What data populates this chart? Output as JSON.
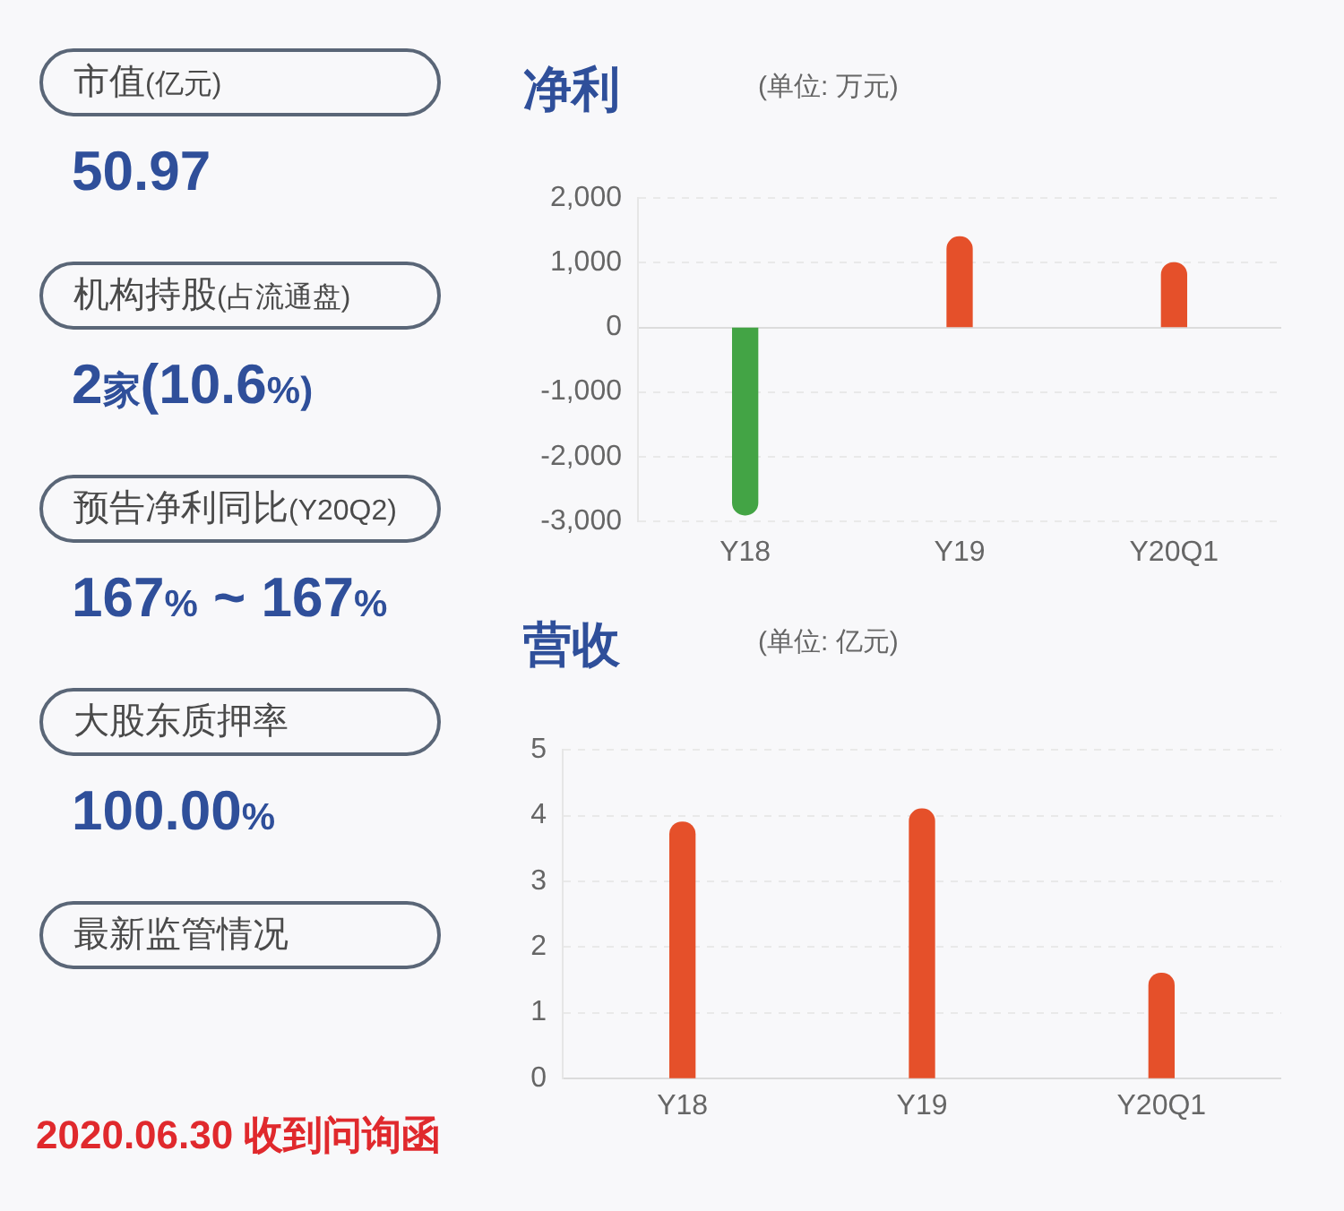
{
  "chart_data": [
    {
      "type": "other",
      "annotations": [
        "市值(亿元)",
        "50.97",
        "机构持股(占流通盘)",
        "2家(10.6%)",
        "预告净利同比(Y20Q2)",
        "167% ~ 167%",
        "大股东质押率",
        "100.00%",
        "最新监管情况",
        "2020.06.30 收到问询函"
      ]
    },
    {
      "type": "bar",
      "title": "净利",
      "subtitle": "(单位: 万元)",
      "categories": [
        "Y18",
        "Y19",
        "Y20Q1"
      ],
      "values": [
        -2900,
        1400,
        1000
      ],
      "colors": [
        "#43a445",
        "#e5502a",
        "#e5502a"
      ],
      "ylim": [
        -3000,
        2000
      ],
      "yticks": [
        {
          "value": -3000,
          "label": "-3,000"
        },
        {
          "value": -2000,
          "label": "-2,000"
        },
        {
          "value": -1000,
          "label": "-1,000"
        },
        0,
        {
          "value": 1000,
          "label": "1,000"
        },
        {
          "value": 2000,
          "label": "2,000"
        }
      ],
      "grid": "y"
    },
    {
      "type": "bar",
      "title": "营收",
      "subtitle": "(单位: 亿元)",
      "categories": [
        "Y18",
        "Y19",
        "Y20Q1"
      ],
      "values": [
        3.9,
        4.1,
        1.6
      ],
      "colors": [
        "#e5502a",
        "#e5502a",
        "#e5502a"
      ],
      "ylim": [
        0,
        5
      ],
      "yticks": [
        0,
        1,
        2,
        3,
        4,
        5
      ],
      "grid": "y"
    }
  ]
}
